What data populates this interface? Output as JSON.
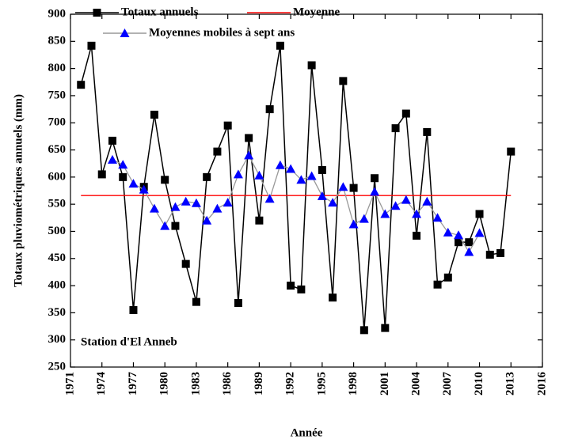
{
  "chart_data": {
    "type": "line",
    "xlabel": "Année",
    "ylabel": "Totaux pluviométriques annuels (mm)",
    "annotation": "Station d'El Anneb",
    "xlim": [
      1971,
      2016
    ],
    "xticks": [
      1971,
      1974,
      1977,
      1980,
      1983,
      1986,
      1989,
      1992,
      1995,
      1998,
      2001,
      2004,
      2007,
      2010,
      2013,
      2016
    ],
    "ylim": [
      250,
      900
    ],
    "yticks": [
      250,
      300,
      350,
      400,
      450,
      500,
      550,
      600,
      650,
      700,
      750,
      800,
      850,
      900
    ],
    "series": [
      {
        "name": "Totaux annuels",
        "color": "#000000",
        "marker": "square",
        "x": [
          1972,
          1973,
          1974,
          1975,
          1976,
          1977,
          1978,
          1979,
          1980,
          1981,
          1982,
          1983,
          1984,
          1985,
          1986,
          1987,
          1988,
          1989,
          1990,
          1991,
          1992,
          1993,
          1994,
          1995,
          1996,
          1997,
          1998,
          1999,
          2000,
          2001,
          2002,
          2003,
          2004,
          2005,
          2006,
          2007,
          2008,
          2009,
          2010,
          2011,
          2012,
          2013
        ],
        "values": [
          770,
          842,
          605,
          667,
          600,
          355,
          582,
          715,
          595,
          510,
          440,
          370,
          600,
          647,
          695,
          368,
          672,
          520,
          725,
          842,
          400,
          393,
          806,
          613,
          378,
          777,
          580,
          318,
          598,
          322,
          690,
          717,
          492,
          683,
          402,
          415,
          480,
          480,
          532,
          457,
          460,
          647
        ]
      },
      {
        "name": "Moyenne",
        "color": "#ff0000",
        "marker": "none",
        "x": [
          1972,
          2013
        ],
        "values": [
          566,
          566
        ]
      },
      {
        "name": "Moyennes mobiles à sept ans",
        "color": "#999999",
        "marker": "triangle",
        "marker_color": "#0000ff",
        "x": [
          1975,
          1976,
          1977,
          1978,
          1979,
          1980,
          1981,
          1982,
          1983,
          1984,
          1985,
          1986,
          1987,
          1988,
          1989,
          1990,
          1991,
          1992,
          1993,
          1994,
          1995,
          1996,
          1997,
          1998,
          1999,
          2000,
          2001,
          2002,
          2003,
          2004,
          2005,
          2006,
          2007,
          2008,
          2009,
          2010
        ],
        "values": [
          632,
          623,
          588,
          577,
          542,
          510,
          545,
          555,
          552,
          520,
          542,
          553,
          605,
          640,
          603,
          560,
          622,
          615,
          595,
          602,
          565,
          553,
          582,
          513,
          523,
          573,
          532,
          547,
          558,
          532,
          555,
          525,
          498,
          493,
          462,
          497
        ]
      }
    ]
  }
}
